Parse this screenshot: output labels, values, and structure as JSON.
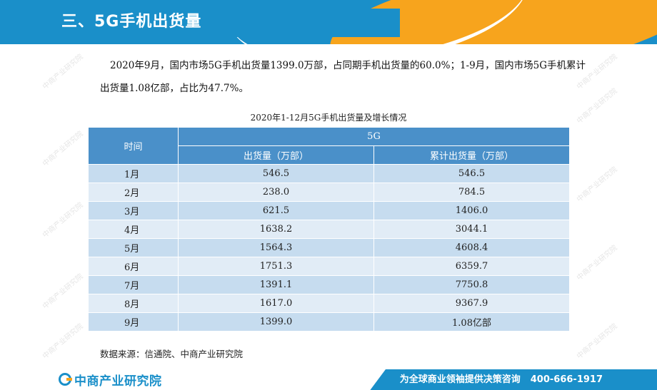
{
  "header": {
    "title": "三、5G手机出货量"
  },
  "intro": "2020年9月，国内市场5G手机出货量1399.0万部，占同期手机出货量的60.0%；1-9月，国内市场5G手机累计出货量1.08亿部，占比为47.7%。",
  "table": {
    "caption": "2020年1-12月5G手机出货量及增长情况",
    "col_time": "时间",
    "group_label": "5G",
    "col_shipment": "出货量（万部）",
    "col_cumulative": "累计出货量（万部）",
    "rows": [
      {
        "month": "1月",
        "shipment": "546.5",
        "cumulative": "546.5"
      },
      {
        "month": "2月",
        "shipment": "238.0",
        "cumulative": "784.5"
      },
      {
        "month": "3月",
        "shipment": "621.5",
        "cumulative": "1406.0"
      },
      {
        "month": "4月",
        "shipment": "1638.2",
        "cumulative": "3044.1"
      },
      {
        "month": "5月",
        "shipment": "1564.3",
        "cumulative": "4608.4"
      },
      {
        "month": "6月",
        "shipment": "1751.3",
        "cumulative": "6359.7"
      },
      {
        "month": "7月",
        "shipment": "1391.1",
        "cumulative": "7750.8"
      },
      {
        "month": "8月",
        "shipment": "1617.0",
        "cumulative": "9367.9"
      },
      {
        "month": "9月",
        "shipment": "1399.0",
        "cumulative": "1.08亿部"
      }
    ]
  },
  "source": "数据来源：信通院、中商产业研究院",
  "footer": {
    "logo_text": "中商产业研究院",
    "slogan": "为全球商业领袖提供决策咨询",
    "phone": "400-666-1917"
  },
  "watermark": "中商产业研究院",
  "colors": {
    "brand_blue": "#1a8fc9",
    "brand_orange": "#f7a41d",
    "table_header": "#4a90c9",
    "row_dark": "#c6dcef",
    "row_light": "#e1ecf6"
  }
}
